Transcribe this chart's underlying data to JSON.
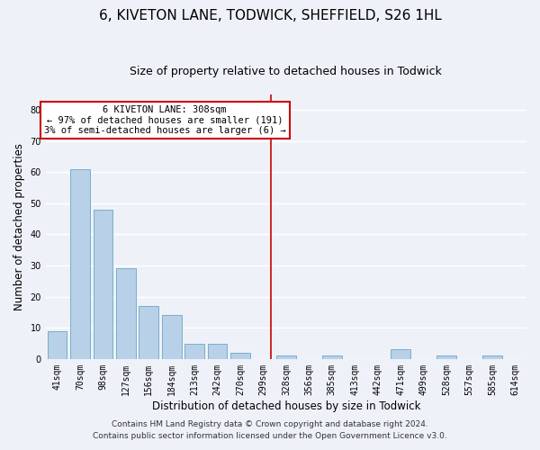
{
  "title": "6, KIVETON LANE, TODWICK, SHEFFIELD, S26 1HL",
  "subtitle": "Size of property relative to detached houses in Todwick",
  "xlabel": "Distribution of detached houses by size in Todwick",
  "ylabel": "Number of detached properties",
  "bar_labels": [
    "41sqm",
    "70sqm",
    "98sqm",
    "127sqm",
    "156sqm",
    "184sqm",
    "213sqm",
    "242sqm",
    "270sqm",
    "299sqm",
    "328sqm",
    "356sqm",
    "385sqm",
    "413sqm",
    "442sqm",
    "471sqm",
    "499sqm",
    "528sqm",
    "557sqm",
    "585sqm",
    "614sqm"
  ],
  "bar_heights": [
    9,
    61,
    48,
    29,
    17,
    14,
    5,
    5,
    2,
    0,
    1,
    0,
    1,
    0,
    0,
    3,
    0,
    1,
    0,
    1,
    0
  ],
  "bar_color": "#b8d0e8",
  "bar_edge_color": "#7aaec8",
  "vline_x": 9.35,
  "vline_color": "#cc0000",
  "annotation_text": "6 KIVETON LANE: 308sqm\n← 97% of detached houses are smaller (191)\n3% of semi-detached houses are larger (6) →",
  "annotation_box_color": "#ffffff",
  "annotation_box_edge": "#cc0000",
  "ylim": [
    0,
    85
  ],
  "yticks": [
    0,
    10,
    20,
    30,
    40,
    50,
    60,
    70,
    80
  ],
  "footer_line1": "Contains HM Land Registry data © Crown copyright and database right 2024.",
  "footer_line2": "Contains public sector information licensed under the Open Government Licence v3.0.",
  "background_color": "#eef2f8",
  "grid_color": "#ffffff",
  "title_fontsize": 11,
  "subtitle_fontsize": 9,
  "axis_label_fontsize": 8.5,
  "tick_fontsize": 7,
  "annotation_fontsize": 7.5,
  "footer_fontsize": 6.5
}
